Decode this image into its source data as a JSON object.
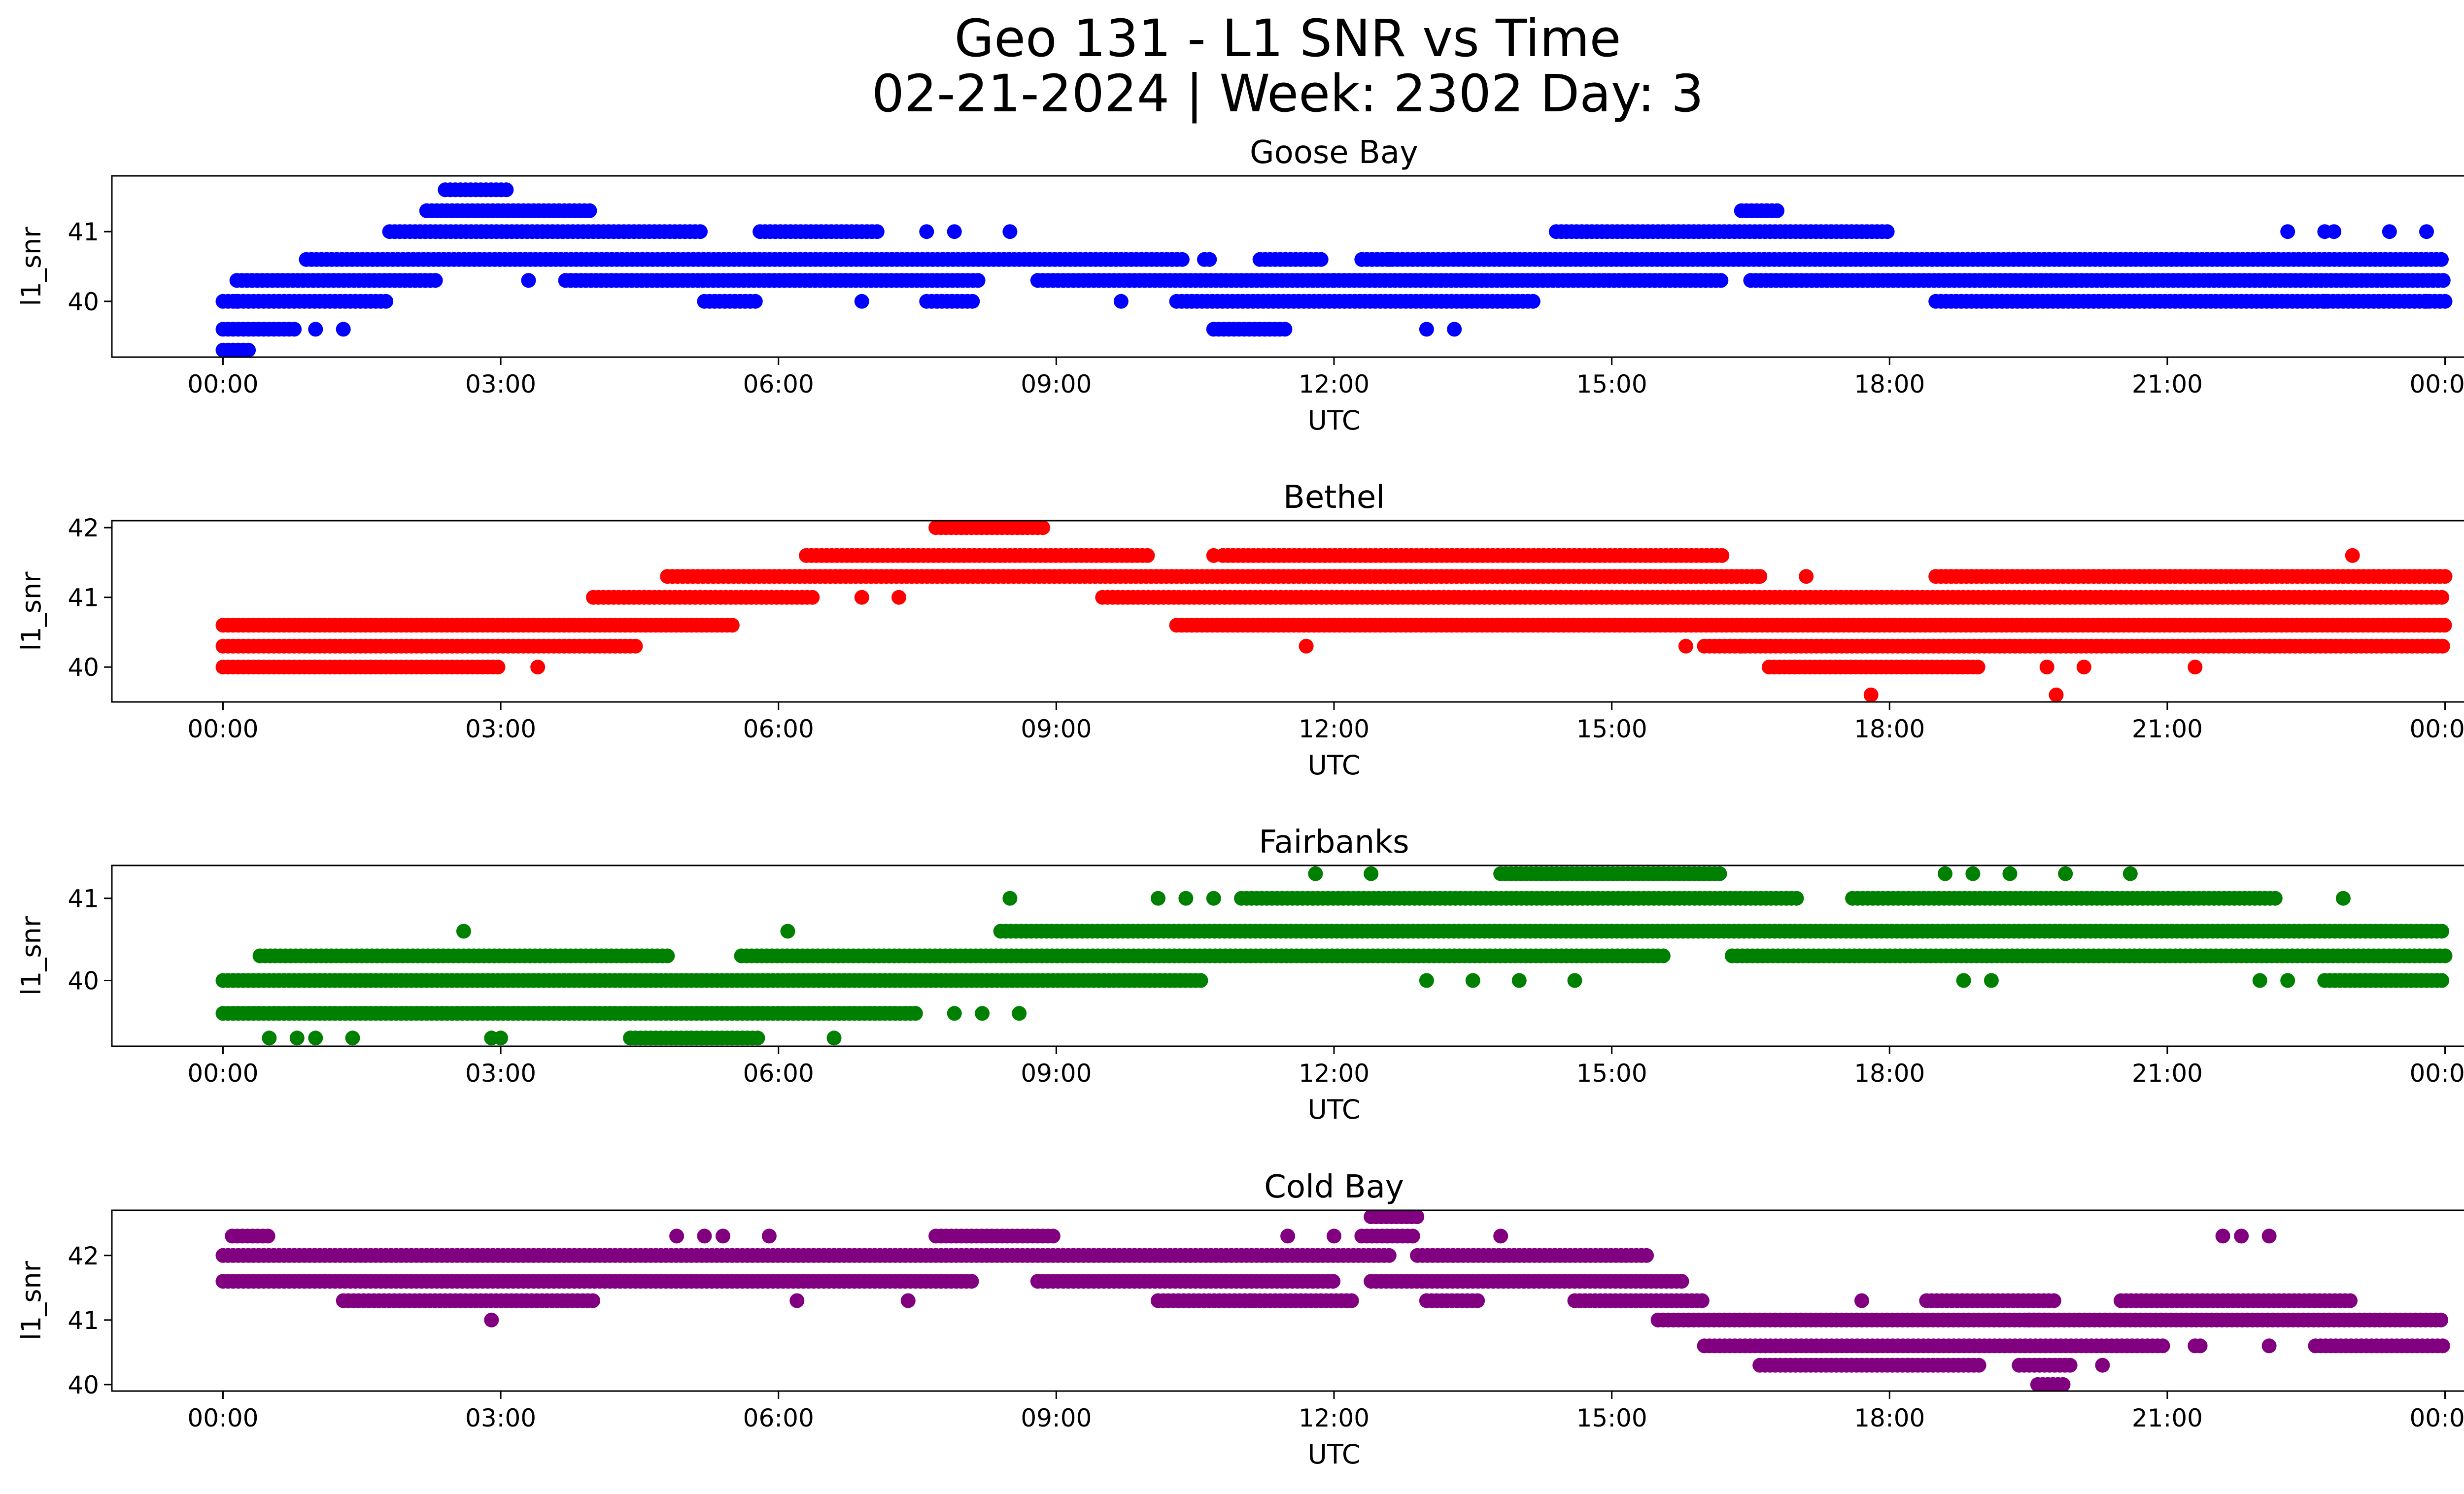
{
  "figure": {
    "title_line1": "Geo 131 - L1 SNR vs Time",
    "title_line2": "02-21-2024 | Week: 2302 Day: 3"
  },
  "chart_data": [
    {
      "type": "scatter",
      "title": "Goose Bay",
      "xlabel": "UTC",
      "ylabel": "l1_snr",
      "color": "#0000ff",
      "xticks": [
        "00:00",
        "03:00",
        "06:00",
        "09:00",
        "12:00",
        "15:00",
        "18:00",
        "21:00",
        "00:00"
      ],
      "xlim_hours": [
        -1.2,
        25.2
      ],
      "yticks": [
        40,
        41
      ],
      "ylim": [
        39.2,
        41.8
      ],
      "bands": [
        {
          "y": 40.6,
          "segments": [
            [
              0.9,
              10.4
            ],
            [
              10.6,
              10.7
            ],
            [
              11.2,
              11.9
            ],
            [
              12.3,
              24.0
            ]
          ]
        },
        {
          "y": 40.3,
          "segments": [
            [
              0.15,
              2.3
            ],
            [
              3.7,
              8.2
            ],
            [
              8.8,
              12.0
            ],
            [
              12.0,
              16.2
            ],
            [
              16.5,
              24.0
            ]
          ]
        },
        {
          "y": 40.0,
          "segments": [
            [
              0.0,
              1.8
            ],
            [
              5.2,
              5.8
            ],
            [
              7.6,
              8.1
            ],
            [
              10.3,
              14.2
            ],
            [
              18.5,
              24.0
            ]
          ]
        },
        {
          "y": 41.0,
          "segments": [
            [
              1.8,
              5.2
            ],
            [
              5.8,
              7.1
            ],
            [
              14.4,
              18.0
            ]
          ]
        },
        {
          "y": 41.3,
          "segments": [
            [
              2.2,
              4.0
            ],
            [
              16.4,
              16.8
            ]
          ]
        },
        {
          "y": 41.6,
          "segments": [
            [
              2.4,
              3.1
            ]
          ]
        },
        {
          "y": 39.6,
          "segments": [
            [
              0.0,
              0.8
            ],
            [
              10.7,
              11.5
            ]
          ]
        },
        {
          "y": 39.3,
          "segments": [
            [
              0.0,
              0.3
            ]
          ]
        }
      ],
      "points": [
        {
          "x": 0.15,
          "y": 40.0
        },
        {
          "x": 1.0,
          "y": 39.6
        },
        {
          "x": 1.3,
          "y": 39.6
        },
        {
          "x": 3.3,
          "y": 40.3
        },
        {
          "x": 7.6,
          "y": 41.0
        },
        {
          "x": 7.9,
          "y": 41.0
        },
        {
          "x": 8.5,
          "y": 41.0
        },
        {
          "x": 6.9,
          "y": 40.0
        },
        {
          "x": 9.7,
          "y": 40.0
        },
        {
          "x": 13.0,
          "y": 39.6
        },
        {
          "x": 13.3,
          "y": 39.6
        },
        {
          "x": 12.3,
          "y": 40.6
        },
        {
          "x": 12.6,
          "y": 40.6
        },
        {
          "x": 22.3,
          "y": 41.0
        },
        {
          "x": 22.7,
          "y": 41.0
        },
        {
          "x": 22.8,
          "y": 41.0
        },
        {
          "x": 23.4,
          "y": 41.0
        },
        {
          "x": 23.8,
          "y": 41.0
        },
        {
          "x": 22.7,
          "y": 40.0
        },
        {
          "x": 23.8,
          "y": 40.0
        }
      ]
    },
    {
      "type": "scatter",
      "title": "Bethel",
      "xlabel": "UTC",
      "ylabel": "l1_snr",
      "color": "#ff0000",
      "xticks": [
        "00:00",
        "03:00",
        "06:00",
        "09:00",
        "12:00",
        "15:00",
        "18:00",
        "21:00",
        "00:00"
      ],
      "xlim_hours": [
        -1.2,
        25.2
      ],
      "yticks": [
        40,
        41,
        42
      ],
      "ylim": [
        39.5,
        42.1
      ],
      "bands": [
        {
          "y": 40.0,
          "segments": [
            [
              0.0,
              3.0
            ],
            [
              16.7,
              19.0
            ]
          ]
        },
        {
          "y": 40.3,
          "segments": [
            [
              0.0,
              4.5
            ],
            [
              16.0,
              24.0
            ]
          ]
        },
        {
          "y": 40.6,
          "segments": [
            [
              0.0,
              5.5
            ],
            [
              10.3,
              24.0
            ]
          ]
        },
        {
          "y": 41.0,
          "segments": [
            [
              4.0,
              6.4
            ],
            [
              9.5,
              24.0
            ]
          ]
        },
        {
          "y": 41.3,
          "segments": [
            [
              4.8,
              16.6
            ],
            [
              18.5,
              24.0
            ]
          ]
        },
        {
          "y": 41.6,
          "segments": [
            [
              6.3,
              10.0
            ],
            [
              10.8,
              16.2
            ]
          ]
        },
        {
          "y": 42.0,
          "segments": [
            [
              7.7,
              8.9
            ]
          ]
        }
      ],
      "points": [
        {
          "x": 3.4,
          "y": 40.0
        },
        {
          "x": 6.9,
          "y": 41.0
        },
        {
          "x": 7.3,
          "y": 41.0
        },
        {
          "x": 11.7,
          "y": 40.3
        },
        {
          "x": 17.8,
          "y": 39.6
        },
        {
          "x": 19.8,
          "y": 39.6
        },
        {
          "x": 19.7,
          "y": 40.0
        },
        {
          "x": 20.1,
          "y": 40.0
        },
        {
          "x": 21.3,
          "y": 40.0
        },
        {
          "x": 22.1,
          "y": 40.3
        },
        {
          "x": 23.0,
          "y": 41.6
        },
        {
          "x": 10.7,
          "y": 41.6
        },
        {
          "x": 11.9,
          "y": 41.6
        },
        {
          "x": 15.8,
          "y": 40.3
        },
        {
          "x": 16.4,
          "y": 40.3
        },
        {
          "x": 16.6,
          "y": 41.3
        },
        {
          "x": 17.1,
          "y": 41.3
        }
      ]
    },
    {
      "type": "scatter",
      "title": "Fairbanks",
      "xlabel": "UTC",
      "ylabel": "l1_snr",
      "color": "#008000",
      "xticks": [
        "00:00",
        "03:00",
        "06:00",
        "09:00",
        "12:00",
        "15:00",
        "18:00",
        "21:00",
        "00:00"
      ],
      "xlim_hours": [
        -1.2,
        25.2
      ],
      "yticks": [
        40,
        41
      ],
      "ylim": [
        39.2,
        41.4
      ],
      "bands": [
        {
          "y": 40.0,
          "segments": [
            [
              0.0,
              10.6
            ],
            [
              22.7,
              24.0
            ]
          ]
        },
        {
          "y": 39.6,
          "segments": [
            [
              0.0,
              7.5
            ]
          ]
        },
        {
          "y": 40.3,
          "segments": [
            [
              0.4,
              4.8
            ],
            [
              5.6,
              15.6
            ],
            [
              16.3,
              24.0
            ]
          ]
        },
        {
          "y": 40.6,
          "segments": [
            [
              8.4,
              24.0
            ]
          ]
        },
        {
          "y": 41.0,
          "segments": [
            [
              11.0,
              17.0
            ],
            [
              17.6,
              22.2
            ]
          ]
        },
        {
          "y": 41.3,
          "segments": [
            [
              13.8,
              16.2
            ]
          ]
        },
        {
          "y": 39.3,
          "segments": [
            [
              4.4,
              5.8
            ]
          ]
        }
      ],
      "points": [
        {
          "x": 0.5,
          "y": 39.3
        },
        {
          "x": 0.8,
          "y": 39.3
        },
        {
          "x": 1.0,
          "y": 39.3
        },
        {
          "x": 1.4,
          "y": 39.3
        },
        {
          "x": 2.9,
          "y": 39.3
        },
        {
          "x": 3.0,
          "y": 39.3
        },
        {
          "x": 6.6,
          "y": 39.3
        },
        {
          "x": 7.9,
          "y": 39.6
        },
        {
          "x": 8.2,
          "y": 39.6
        },
        {
          "x": 8.6,
          "y": 39.6
        },
        {
          "x": 2.6,
          "y": 40.6
        },
        {
          "x": 6.1,
          "y": 40.6
        },
        {
          "x": 8.5,
          "y": 41.0
        },
        {
          "x": 10.1,
          "y": 41.0
        },
        {
          "x": 10.4,
          "y": 41.0
        },
        {
          "x": 10.7,
          "y": 41.0
        },
        {
          "x": 11.8,
          "y": 41.3
        },
        {
          "x": 12.4,
          "y": 41.3
        },
        {
          "x": 13.0,
          "y": 40.0
        },
        {
          "x": 13.5,
          "y": 40.0
        },
        {
          "x": 14.0,
          "y": 40.0
        },
        {
          "x": 14.6,
          "y": 40.0
        },
        {
          "x": 15.5,
          "y": 41.3
        },
        {
          "x": 18.6,
          "y": 41.3
        },
        {
          "x": 18.9,
          "y": 41.3
        },
        {
          "x": 19.3,
          "y": 41.3
        },
        {
          "x": 19.9,
          "y": 41.3
        },
        {
          "x": 20.6,
          "y": 41.3
        },
        {
          "x": 18.8,
          "y": 40.0
        },
        {
          "x": 19.1,
          "y": 40.0
        },
        {
          "x": 22.0,
          "y": 40.0
        },
        {
          "x": 22.3,
          "y": 40.0
        },
        {
          "x": 22.9,
          "y": 41.0
        }
      ]
    },
    {
      "type": "scatter",
      "title": "Cold Bay",
      "xlabel": "UTC",
      "ylabel": "l1_snr",
      "color": "#800080",
      "xticks": [
        "00:00",
        "03:00",
        "06:00",
        "09:00",
        "12:00",
        "15:00",
        "18:00",
        "21:00",
        "00:00"
      ],
      "xlim_hours": [
        -1.2,
        25.2
      ],
      "yticks": [
        40,
        41,
        42
      ],
      "ylim": [
        39.9,
        42.7
      ],
      "bands": [
        {
          "y": 42.0,
          "segments": [
            [
              0.0,
              12.6
            ],
            [
              12.9,
              15.4
            ]
          ]
        },
        {
          "y": 41.6,
          "segments": [
            [
              0.0,
              8.1
            ],
            [
              8.8,
              12.0
            ],
            [
              12.4,
              15.8
            ]
          ]
        },
        {
          "y": 41.3,
          "segments": [
            [
              1.3,
              4.0
            ],
            [
              10.1,
              12.2
            ],
            [
              13.0,
              13.6
            ],
            [
              14.6,
              16.0
            ],
            [
              18.4,
              19.8
            ],
            [
              20.5,
              23.0
            ]
          ]
        },
        {
          "y": 41.0,
          "segments": [
            [
              15.5,
              19.7
            ],
            [
              19.5,
              24.0
            ]
          ]
        },
        {
          "y": 40.6,
          "segments": [
            [
              16.0,
              21.0
            ],
            [
              21.3,
              21.4
            ],
            [
              22.6,
              24.0
            ]
          ]
        },
        {
          "y": 40.3,
          "segments": [
            [
              16.6,
              19.0
            ],
            [
              19.4,
              20.0
            ]
          ]
        },
        {
          "y": 42.3,
          "segments": [
            [
              0.1,
              0.5
            ],
            [
              7.7,
              9.0
            ],
            [
              12.3,
              12.9
            ]
          ]
        },
        {
          "y": 42.6,
          "segments": [
            [
              12.4,
              12.9
            ]
          ]
        },
        {
          "y": 40.0,
          "segments": [
            [
              19.6,
              19.9
            ]
          ]
        }
      ],
      "points": [
        {
          "x": 2.9,
          "y": 41.0
        },
        {
          "x": 4.9,
          "y": 42.3
        },
        {
          "x": 5.2,
          "y": 42.3
        },
        {
          "x": 5.4,
          "y": 42.3
        },
        {
          "x": 5.9,
          "y": 42.3
        },
        {
          "x": 6.2,
          "y": 41.3
        },
        {
          "x": 7.4,
          "y": 41.3
        },
        {
          "x": 11.5,
          "y": 42.3
        },
        {
          "x": 12.0,
          "y": 42.3
        },
        {
          "x": 13.8,
          "y": 42.3
        },
        {
          "x": 11.1,
          "y": 41.3
        },
        {
          "x": 17.7,
          "y": 41.3
        },
        {
          "x": 20.3,
          "y": 40.3
        },
        {
          "x": 21.6,
          "y": 42.3
        },
        {
          "x": 21.8,
          "y": 42.3
        },
        {
          "x": 22.1,
          "y": 42.3
        },
        {
          "x": 22.1,
          "y": 40.6
        },
        {
          "x": 18.2,
          "y": 40.3
        }
      ]
    }
  ]
}
